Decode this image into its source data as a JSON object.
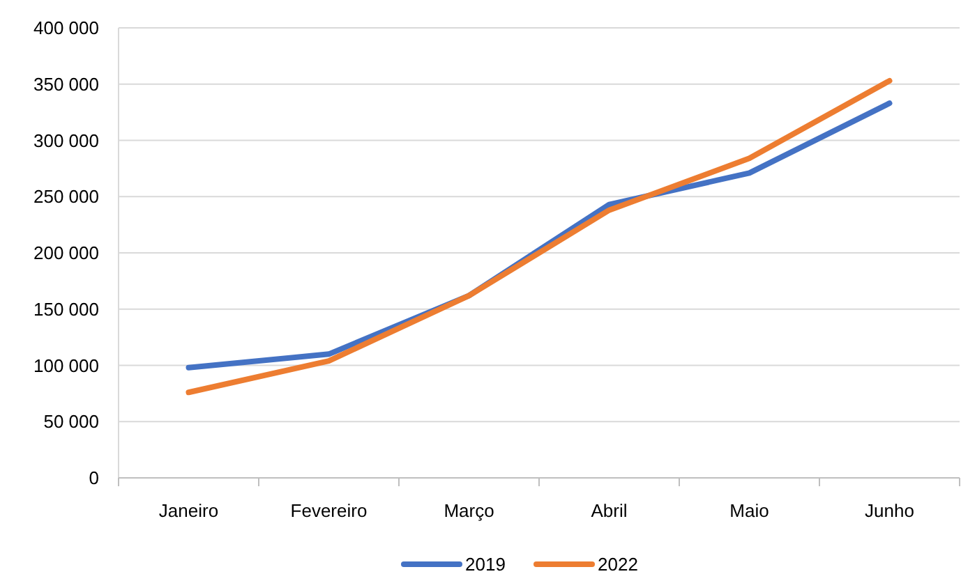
{
  "chart_data": {
    "type": "line",
    "categories": [
      "Janeiro",
      "Fevereiro",
      "Março",
      "Abril",
      "Maio",
      "Junho"
    ],
    "series": [
      {
        "name": "2019",
        "color": "#4472c4",
        "values": [
          98000,
          110000,
          162000,
          243000,
          271000,
          333000
        ]
      },
      {
        "name": "2022",
        "color": "#ed7d31",
        "values": [
          76000,
          104000,
          162000,
          238000,
          284000,
          353000
        ]
      }
    ],
    "ylim": [
      0,
      400000
    ],
    "yticks": [
      0,
      {
        "value": 50000,
        "label": "50 000"
      },
      {
        "value": 100000,
        "label": "100 000"
      },
      {
        "value": 150000,
        "label": "150 000"
      },
      {
        "value": 200000,
        "label": "200 000"
      },
      {
        "value": 250000,
        "label": "250 000"
      },
      {
        "value": 300000,
        "label": "300 000"
      },
      {
        "value": 350000,
        "label": "350 000"
      },
      {
        "value": 400000,
        "label": "400 000"
      }
    ],
    "grid": "y",
    "legend": "bottom",
    "marker": "none",
    "line_style": "solid"
  }
}
